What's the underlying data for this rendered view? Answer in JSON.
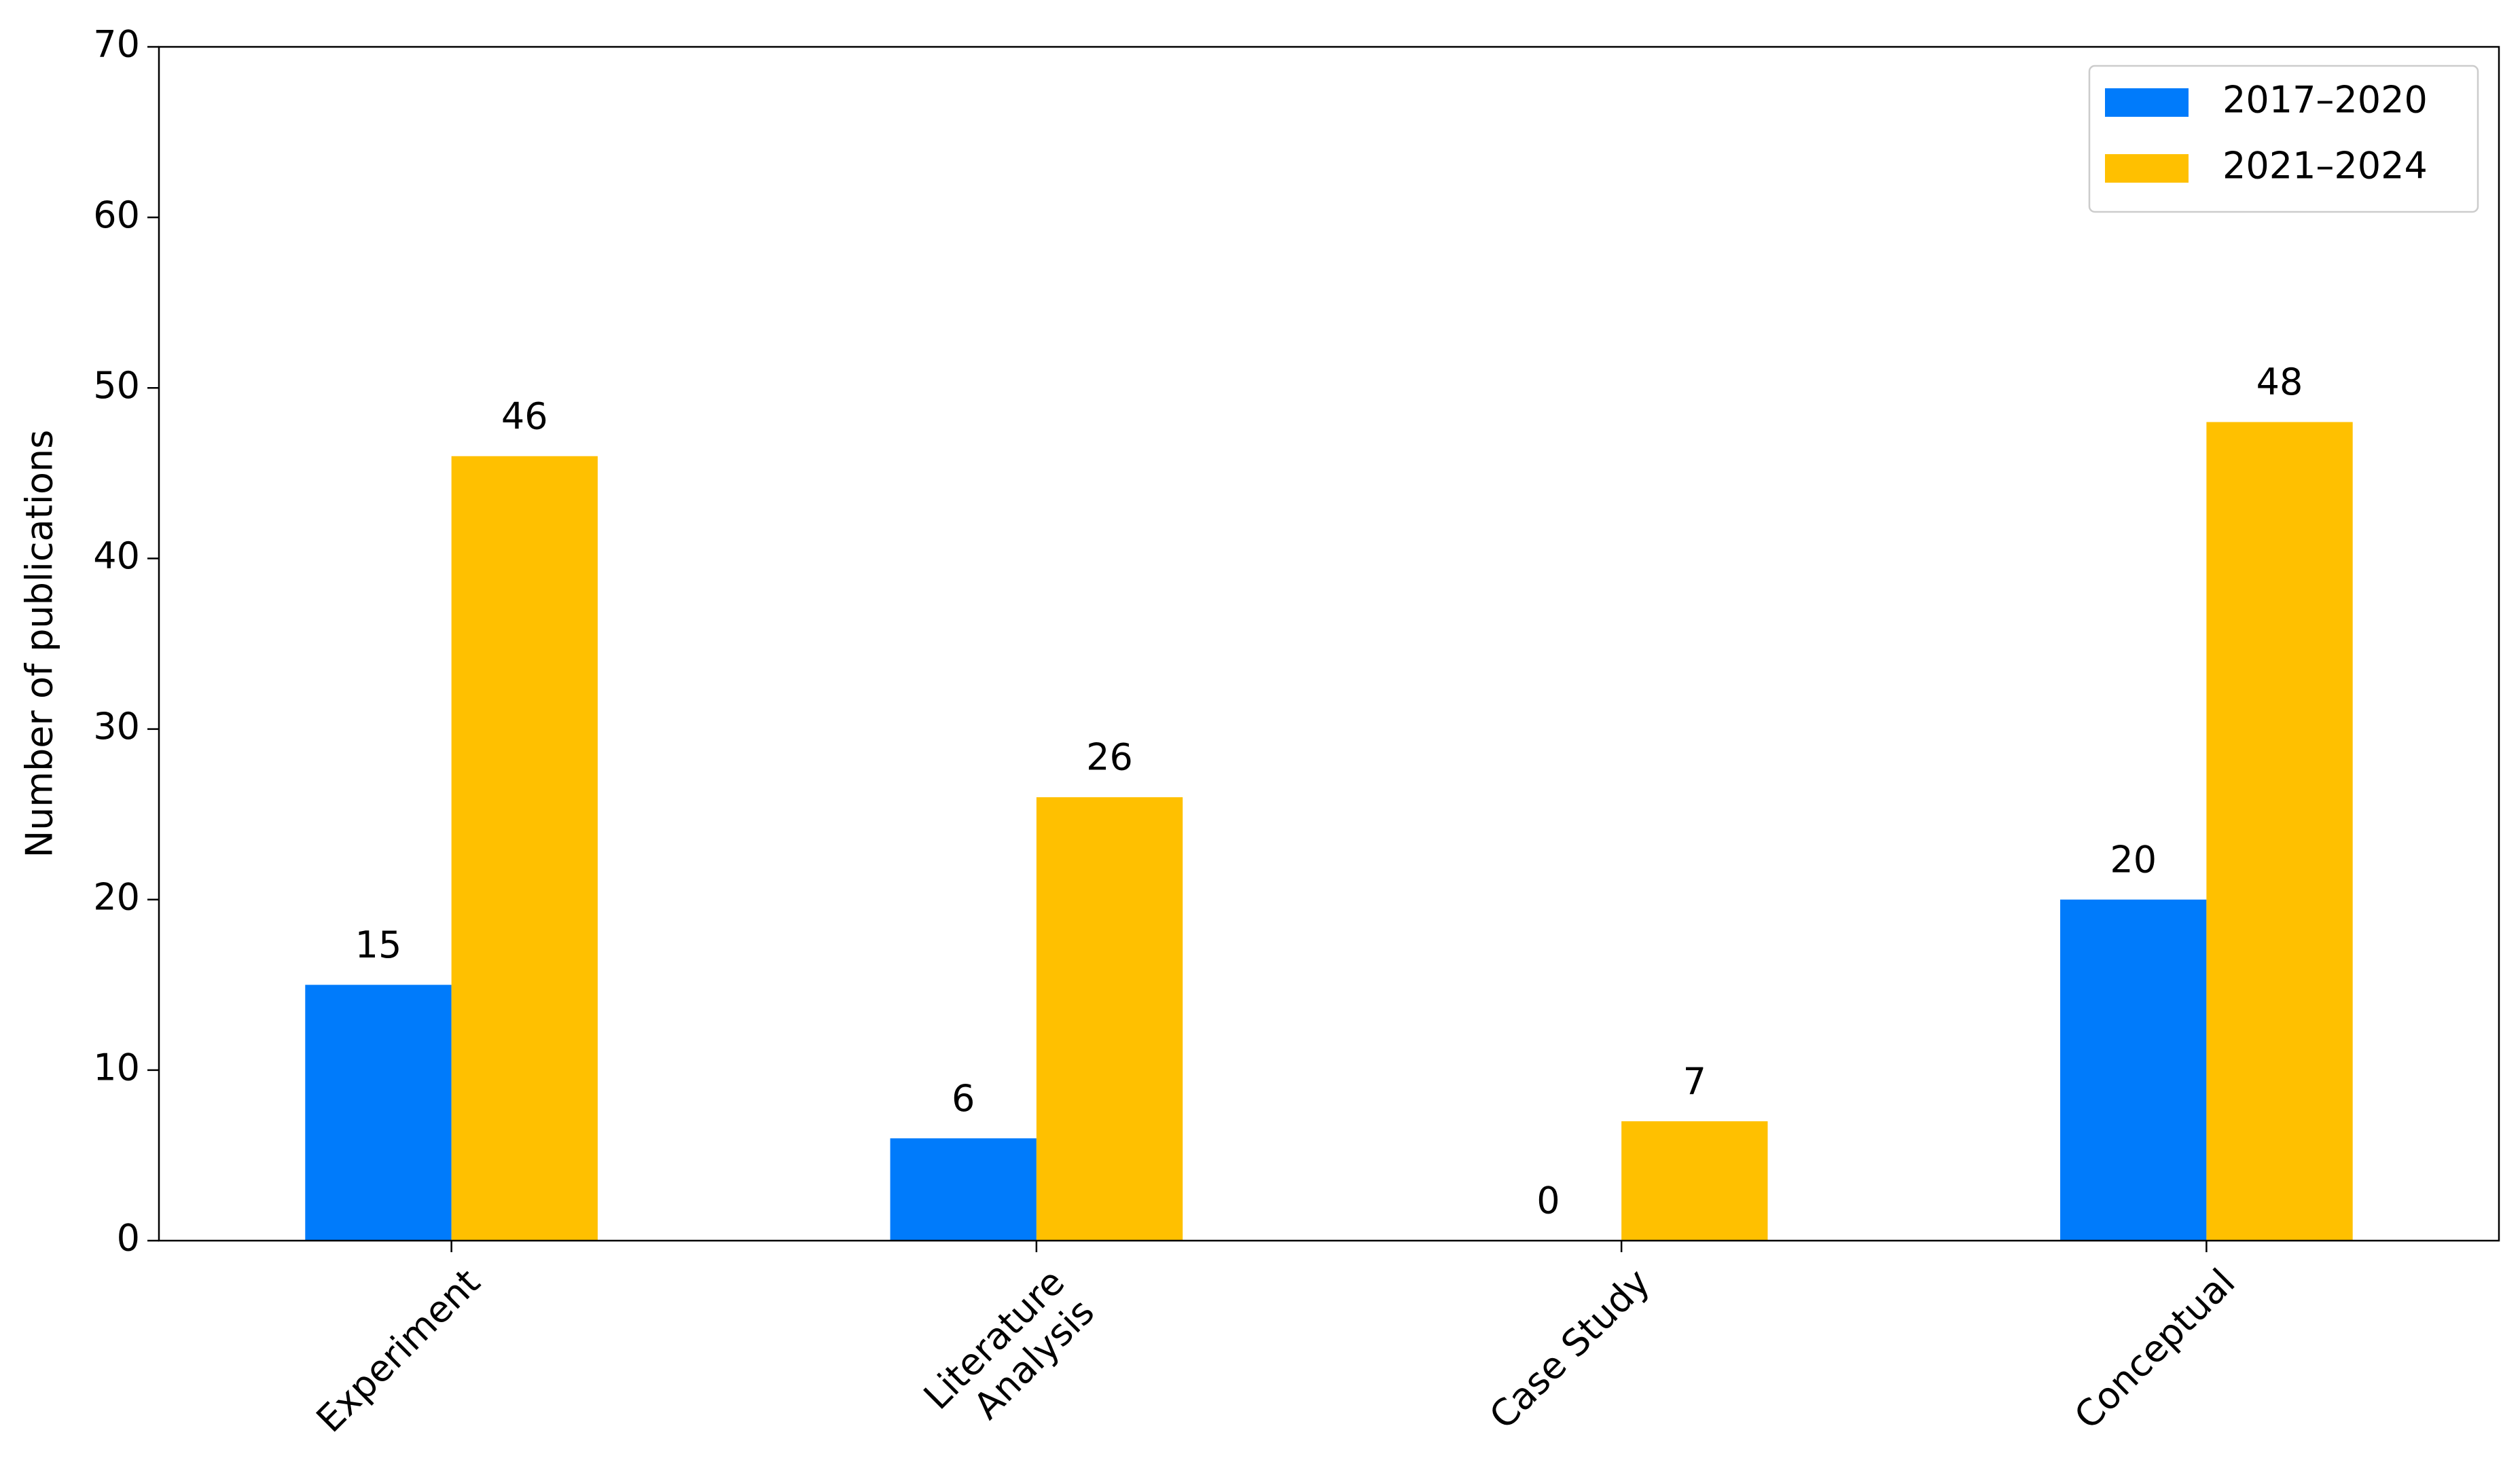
{
  "chart_data": {
    "type": "bar",
    "y_label": "Number of publications",
    "categories": [
      "Experiment",
      "Literature\nAnalysis",
      "Case Study",
      "Conceptual"
    ],
    "series": [
      {
        "name": "2017–2020",
        "color": "#007bfb",
        "values": [
          15,
          6,
          0,
          20
        ]
      },
      {
        "name": "2021–2024",
        "color": "#ffc000",
        "values": [
          46,
          26,
          7,
          48
        ]
      }
    ],
    "ylim": [
      0,
      70
    ],
    "yticks": [
      0,
      10,
      20,
      30,
      40,
      50,
      60,
      70
    ],
    "grid": false,
    "legend": "upper right"
  }
}
